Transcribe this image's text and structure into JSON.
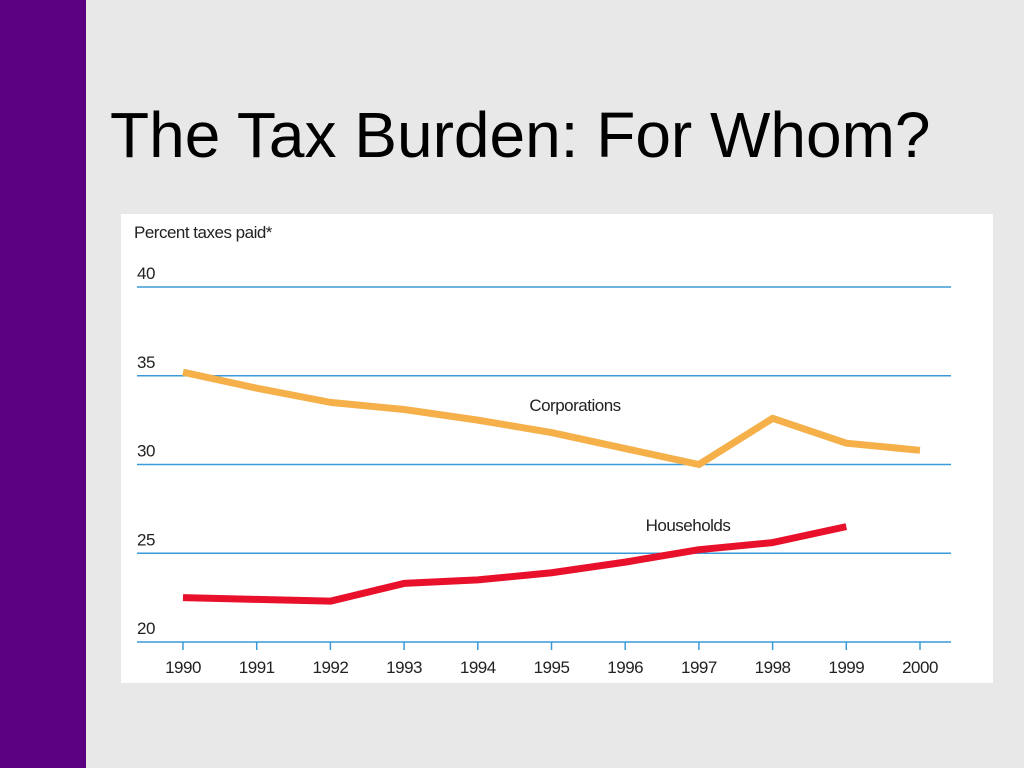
{
  "slide_title": "The Tax Burden: For Whom?",
  "chart_data": {
    "type": "line",
    "y_label": "Percent taxes paid*",
    "x": [
      1990,
      1991,
      1992,
      1993,
      1994,
      1995,
      1996,
      1997,
      1998,
      1999,
      2000
    ],
    "series": [
      {
        "name": "Corporations",
        "color": "#f5b04a",
        "values": [
          35.2,
          34.3,
          33.5,
          33.1,
          32.5,
          31.8,
          30.9,
          30.0,
          32.6,
          31.2,
          30.8
        ]
      },
      {
        "name": "Households",
        "color": "#e8102a",
        "values": [
          22.5,
          22.4,
          22.3,
          23.3,
          23.5,
          23.9,
          24.5,
          25.2,
          25.6,
          26.5,
          null
        ]
      }
    ],
    "xlim": [
      1990,
      2000
    ],
    "ylim": [
      20,
      40
    ],
    "yticks": [
      20,
      25,
      30,
      35,
      40
    ],
    "grid": true
  }
}
